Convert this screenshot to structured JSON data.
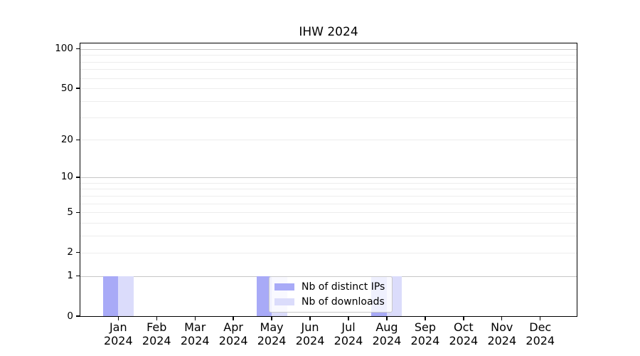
{
  "chart_data": {
    "type": "bar",
    "title": "IHW 2024",
    "categories": [
      "Jan",
      "Feb",
      "Mar",
      "Apr",
      "May",
      "Jun",
      "Jul",
      "Aug",
      "Sep",
      "Oct",
      "Nov",
      "Dec"
    ],
    "x_year_label": "2024",
    "series": [
      {
        "name": "Nb of distinct IPs",
        "color": "#a8aaf7",
        "values": [
          1,
          0,
          0,
          0,
          1,
          0,
          0,
          1,
          0,
          0,
          0,
          0
        ]
      },
      {
        "name": "Nb of downloads",
        "color": "#dbdcfb",
        "values": [
          1,
          0,
          0,
          0,
          1,
          0,
          0,
          1,
          0,
          0,
          0,
          0
        ]
      }
    ],
    "xlabel": "",
    "ylabel": "",
    "yscale": "log1p",
    "ylim": [
      0,
      110
    ],
    "yticks": [
      0,
      1,
      2,
      5,
      10,
      20,
      50,
      100
    ],
    "grid": {
      "on": true,
      "decade_lines": [
        1,
        10,
        100
      ],
      "sub_lines": [
        2,
        3,
        4,
        5,
        6,
        7,
        8,
        9,
        20,
        30,
        40,
        50,
        60,
        70,
        80,
        90
      ],
      "decade_color": "#c6c6c6",
      "sub_color": "#ededed"
    },
    "legend": {
      "location": "lower center inside plot",
      "entries": [
        "Nb of distinct IPs",
        "Nb of downloads"
      ]
    }
  }
}
